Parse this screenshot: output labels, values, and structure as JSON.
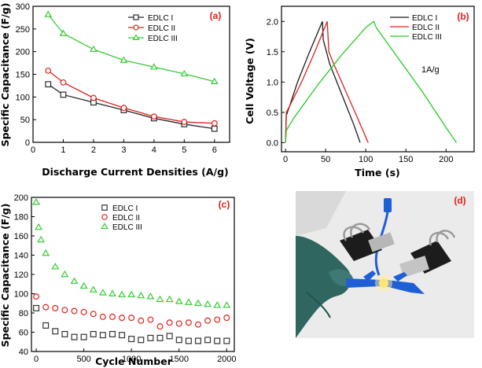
{
  "chart_data": [
    {
      "type": "line",
      "panel_label": "(a)",
      "xlabel": "Discharge Current Densities (A/g)",
      "ylabel": "Specific Capacitance (F/g)",
      "xlim": [
        0,
        6.5
      ],
      "ylim": [
        0,
        300
      ],
      "xticks": [
        0,
        1,
        2,
        3,
        4,
        5,
        6
      ],
      "yticks": [
        0,
        50,
        100,
        150,
        200,
        250,
        300
      ],
      "legend": "top-left",
      "x": [
        0.5,
        1,
        2,
        3,
        4,
        5,
        6
      ],
      "series": [
        {
          "name": "EDLC I",
          "color": "#2a2a2a",
          "marker": "square",
          "values": [
            128,
            105,
            88,
            71,
            53,
            40,
            30
          ]
        },
        {
          "name": "EDLC II",
          "color": "#e0201b",
          "marker": "circle",
          "values": [
            158,
            132,
            98,
            76,
            57,
            45,
            42
          ]
        },
        {
          "name": "EDLC III",
          "color": "#33cc33",
          "marker": "triangle",
          "values": [
            282,
            240,
            205,
            181,
            166,
            151,
            134
          ]
        }
      ]
    },
    {
      "type": "line",
      "panel_label": "(b)",
      "xlabel": "Time (s)",
      "ylabel": "Cell Voltage (V)",
      "xlim": [
        -5,
        235
      ],
      "ylim": [
        -0.15,
        2.25
      ],
      "xticks": [
        0,
        50,
        100,
        150,
        200
      ],
      "yticks": [
        0.0,
        0.5,
        1.0,
        1.5,
        2.0
      ],
      "legend": "top-right",
      "annotation": "1A/g",
      "series": [
        {
          "name": "EDLC I",
          "color": "#1a1a1a",
          "x": [
            0,
            1,
            5,
            15,
            30,
            46,
            47,
            55,
            70,
            85,
            93
          ],
          "y": [
            0.0,
            0.45,
            0.6,
            1.0,
            1.5,
            2.0,
            1.7,
            1.3,
            0.8,
            0.3,
            0.0
          ]
        },
        {
          "name": "EDLC II",
          "color": "#e0201b",
          "x": [
            0,
            1,
            5,
            20,
            35,
            52,
            54,
            60,
            75,
            90,
            103
          ],
          "y": [
            0.0,
            0.5,
            0.6,
            1.0,
            1.45,
            2.0,
            1.5,
            1.3,
            0.85,
            0.4,
            0.0
          ]
        },
        {
          "name": "EDLC III",
          "color": "#22cc22",
          "x": [
            0,
            1,
            10,
            40,
            70,
            100,
            110,
            113,
            140,
            170,
            200,
            213
          ],
          "y": [
            0.0,
            0.2,
            0.4,
            0.95,
            1.45,
            1.9,
            2.0,
            1.9,
            1.4,
            0.85,
            0.25,
            0.0
          ]
        }
      ]
    },
    {
      "type": "scatter",
      "panel_label": "(c)",
      "xlabel": "Cycle Number",
      "ylabel": "Specific Capacitance (F/g)",
      "xlim": [
        -50,
        2080
      ],
      "ylim": [
        40,
        200
      ],
      "xticks": [
        0,
        500,
        1000,
        1500,
        2000
      ],
      "yticks": [
        40,
        60,
        80,
        100,
        120,
        140,
        160,
        180,
        200
      ],
      "legend": "top-left",
      "series": [
        {
          "name": "EDLC I",
          "color": "#333333",
          "marker": "square",
          "x": [
            0,
            100,
            200,
            300,
            400,
            500,
            600,
            700,
            800,
            900,
            1000,
            1100,
            1200,
            1300,
            1400,
            1500,
            1600,
            1700,
            1800,
            1900,
            2000
          ],
          "values": [
            85,
            67,
            61,
            58,
            55,
            55,
            58,
            57,
            58,
            57,
            53,
            52,
            54,
            54,
            56,
            52,
            51,
            51,
            52,
            51,
            51
          ]
        },
        {
          "name": "EDLC II",
          "color": "#e0201b",
          "marker": "circle",
          "x": [
            0,
            100,
            200,
            300,
            400,
            500,
            600,
            700,
            800,
            900,
            1000,
            1100,
            1200,
            1300,
            1400,
            1500,
            1600,
            1700,
            1800,
            1900,
            2000
          ],
          "values": [
            97,
            86,
            85,
            83,
            82,
            81,
            79,
            76,
            76,
            75,
            75,
            72,
            73,
            66,
            70,
            69,
            70,
            68,
            72,
            73,
            75
          ]
        },
        {
          "name": "EDLC III",
          "color": "#33cc33",
          "marker": "triangle",
          "x": [
            0,
            25,
            50,
            100,
            200,
            300,
            400,
            500,
            600,
            700,
            800,
            900,
            1000,
            1100,
            1200,
            1300,
            1400,
            1500,
            1600,
            1700,
            1800,
            1900,
            2000
          ],
          "values": [
            195,
            169,
            156,
            142,
            128,
            120,
            113,
            108,
            104,
            101,
            100,
            99,
            99,
            98,
            97,
            94,
            94,
            92,
            91,
            90,
            89,
            88,
            88
          ]
        }
      ]
    }
  ],
  "photo": {
    "panel_label": "(d)",
    "colors": {
      "background": "#ececec",
      "glove": "#2f6660",
      "clip": "#1c1c1c",
      "clamp": "#1f5fd6",
      "led": "#ffd93a"
    }
  }
}
